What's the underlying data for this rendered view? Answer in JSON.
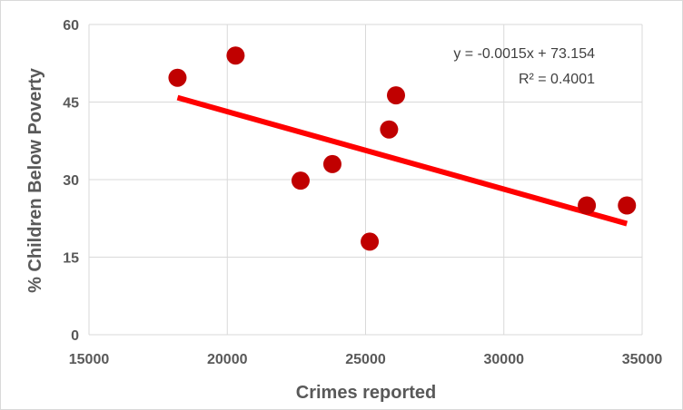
{
  "chart_data": {
    "type": "scatter",
    "title": "",
    "xlabel": "Crimes reported",
    "ylabel": "% Children Below Poverty",
    "xlim": [
      15000,
      35000
    ],
    "ylim": [
      0,
      60
    ],
    "x_ticks": [
      "15000",
      "20000",
      "25000",
      "30000",
      "35000"
    ],
    "y_ticks": [
      "0",
      "15",
      "30",
      "45",
      "60"
    ],
    "grid": true,
    "legend": "none",
    "series": [
      {
        "points": [
          {
            "x": 18200,
            "y": 49.7
          },
          {
            "x": 20300,
            "y": 54.0
          },
          {
            "x": 22650,
            "y": 29.8
          },
          {
            "x": 23800,
            "y": 33.0
          },
          {
            "x": 25150,
            "y": 18.0
          },
          {
            "x": 25850,
            "y": 39.7
          },
          {
            "x": 26100,
            "y": 46.3
          },
          {
            "x": 33000,
            "y": 25.0
          },
          {
            "x": 34450,
            "y": 25.0
          }
        ],
        "color": "#c00000"
      }
    ],
    "trendline": {
      "slope": -0.0015,
      "intercept": 73.154,
      "x_range": [
        18200,
        34450
      ],
      "color": "#ff0000",
      "equation": "y = -0.0015x + 73.154",
      "r_squared": "R² = 0.4001"
    }
  }
}
